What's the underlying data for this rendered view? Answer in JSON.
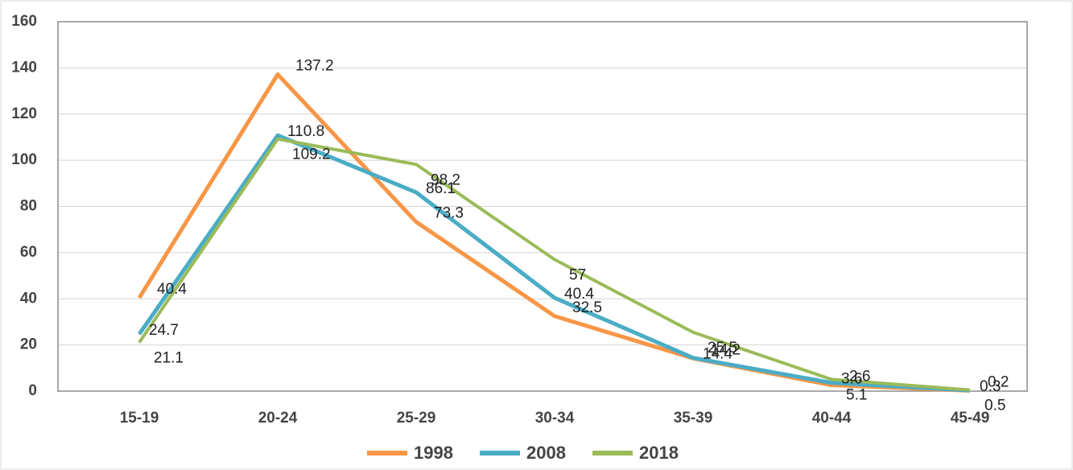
{
  "chart_data": {
    "type": "line",
    "categories": [
      "15-19",
      "20-24",
      "25-29",
      "30-34",
      "35-39",
      "40-44",
      "45-49"
    ],
    "series": [
      {
        "name": "1998",
        "color": "#f79646",
        "values": [
          40.4,
          137.2,
          73.3,
          32.5,
          14.2,
          2.6,
          0.2
        ]
      },
      {
        "name": "2008",
        "color": "#4bacc6",
        "values": [
          24.7,
          110.8,
          86.1,
          40.4,
          14.4,
          3.6,
          0.3
        ]
      },
      {
        "name": "2018",
        "color": "#9bbb59",
        "values": [
          21.1,
          109.2,
          98.2,
          57,
          25.5,
          5.1,
          0.5
        ]
      }
    ],
    "ylim": [
      0,
      160
    ],
    "yticks": [
      0,
      20,
      40,
      60,
      80,
      100,
      120,
      140,
      160
    ],
    "grid": true,
    "legend": "bottom"
  }
}
